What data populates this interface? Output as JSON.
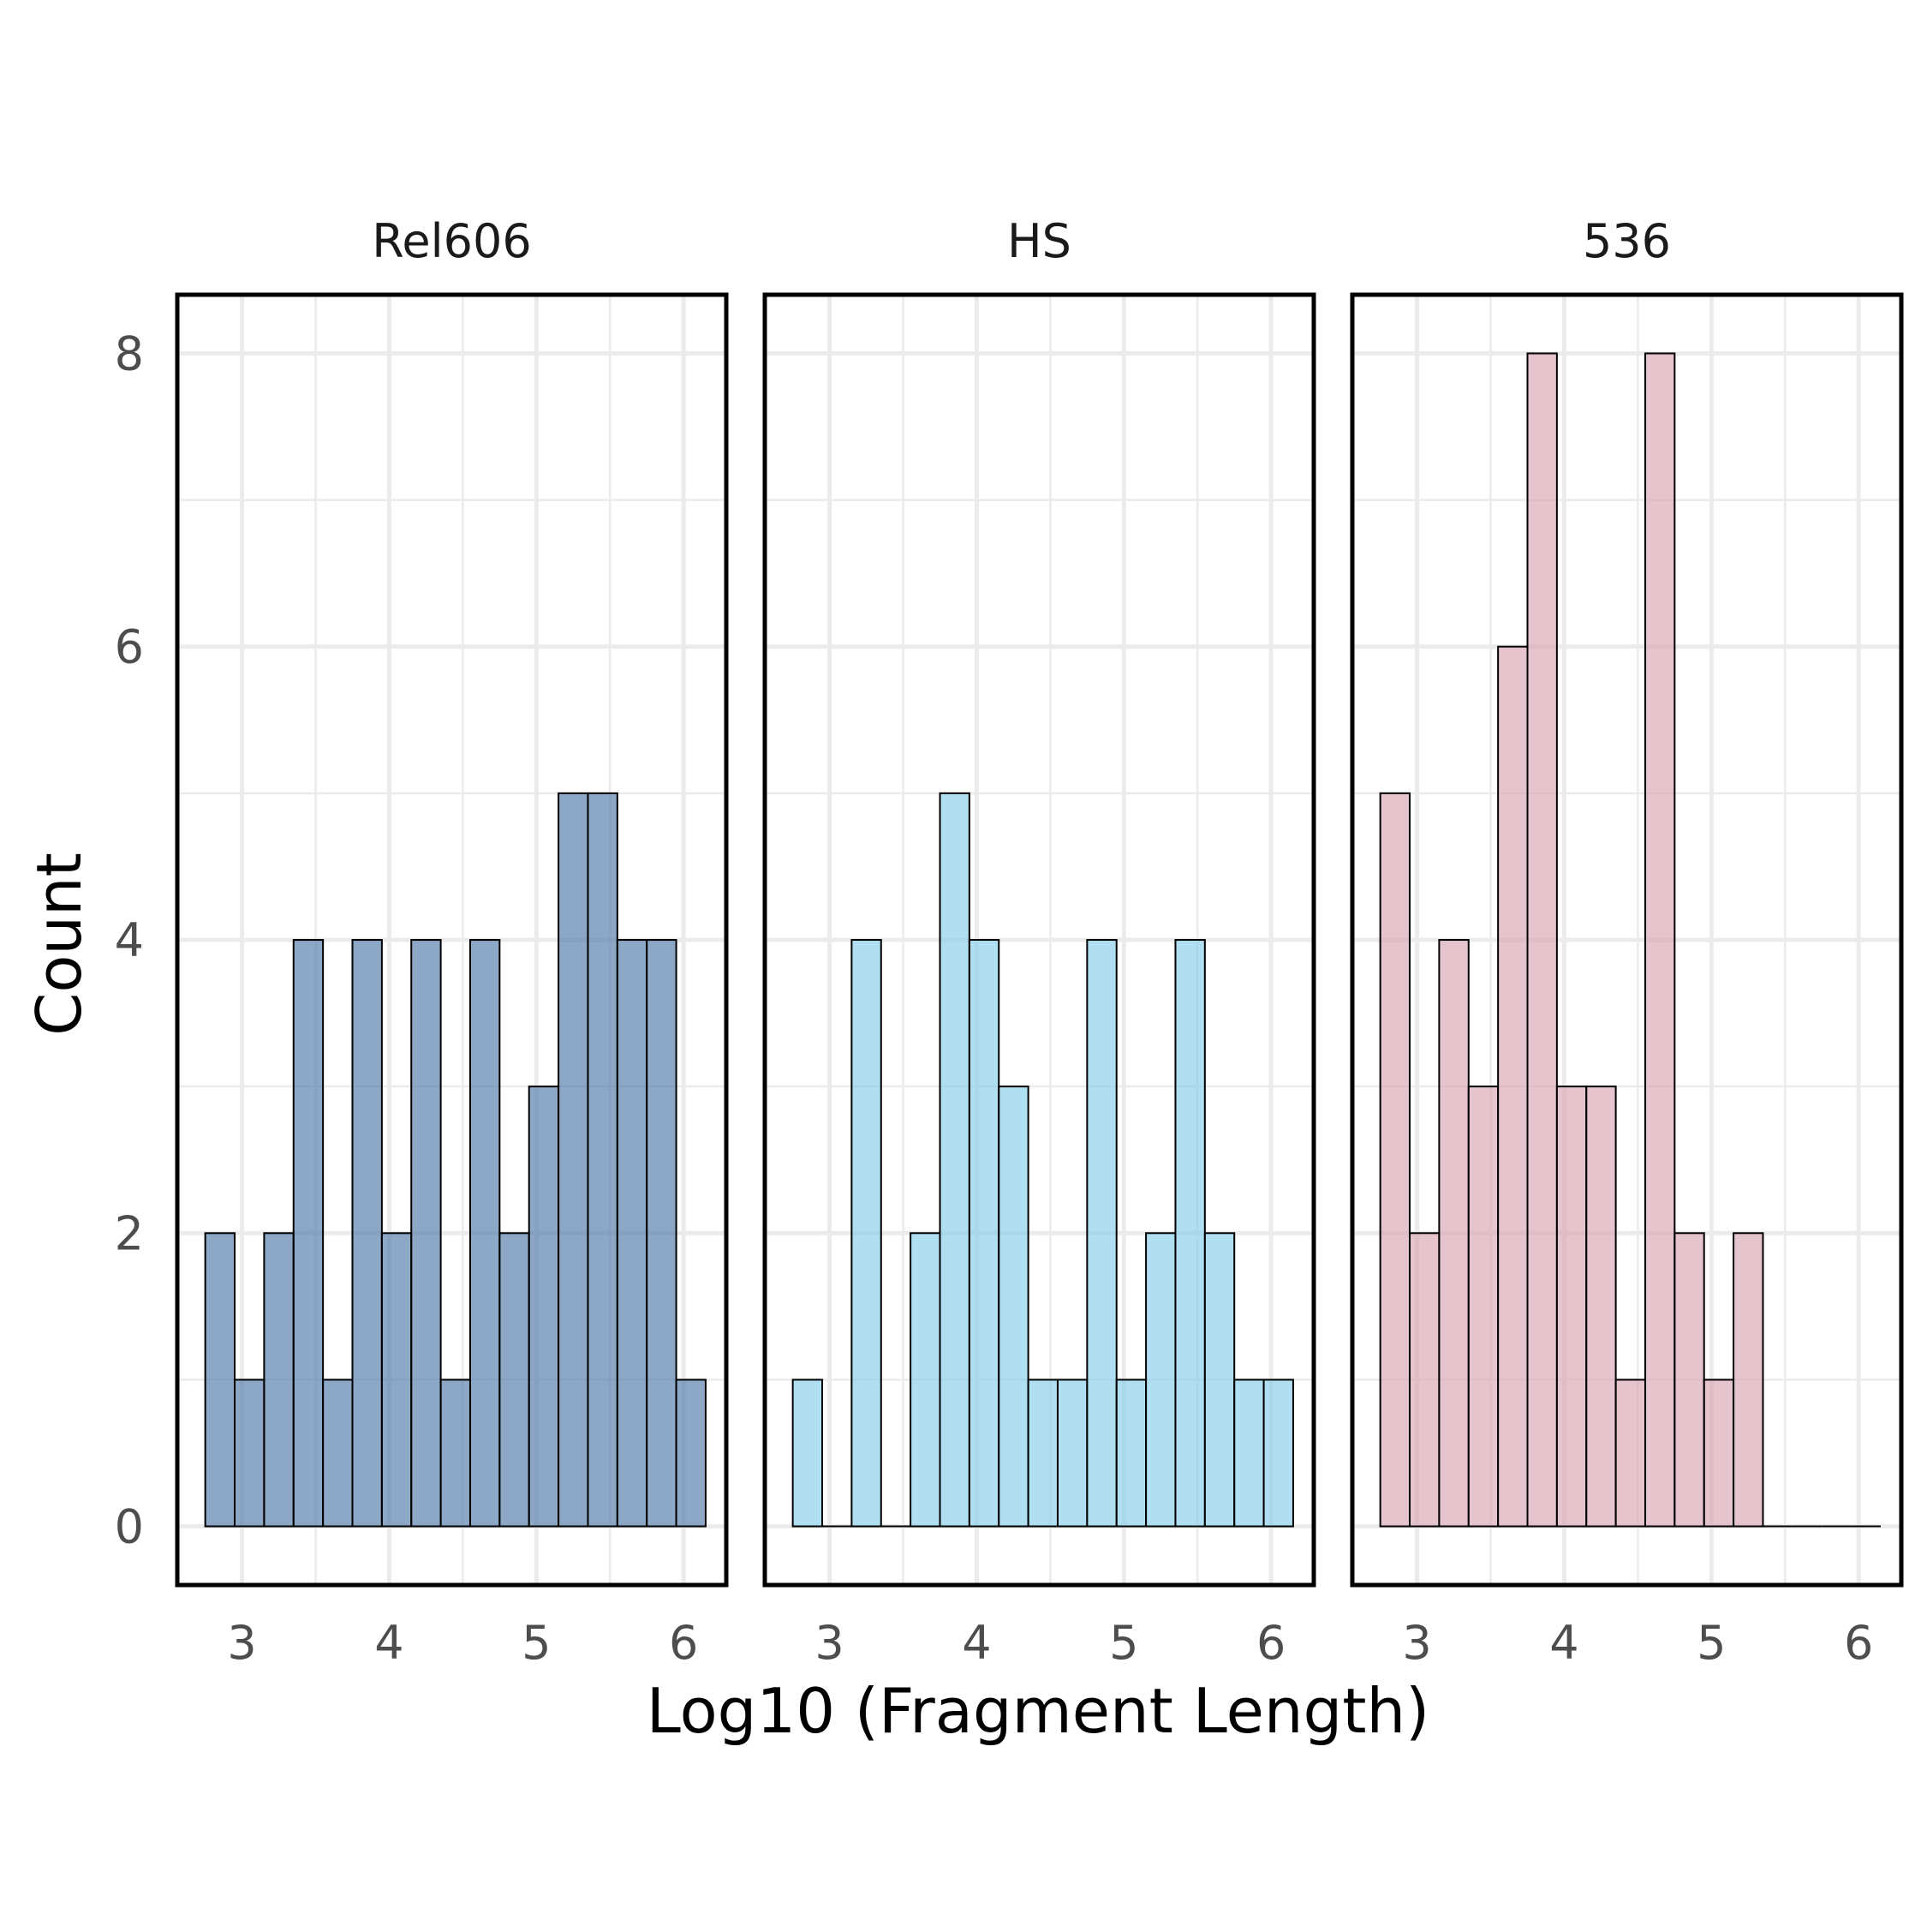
{
  "chart_data": {
    "type": "histogram",
    "xlabel": "Log10 (Fragment Length)",
    "ylabel": "Count",
    "xlim": [
      2.56,
      6.29
    ],
    "ylim": [
      -0.4,
      8.4
    ],
    "x_ticks": [
      3,
      4,
      5,
      6
    ],
    "y_ticks": [
      0,
      2,
      4,
      6,
      8
    ],
    "grid": true,
    "bins": {
      "start": 2.75,
      "width": 0.2,
      "count": 17
    },
    "panels": [
      {
        "title": "Rel606",
        "fill": "#4e79a7",
        "values": [
          2,
          1,
          2,
          4,
          1,
          4,
          2,
          4,
          1,
          4,
          2,
          3,
          5,
          5,
          4,
          4,
          1
        ]
      },
      {
        "title": "HS",
        "fill": "#87ceeb",
        "values": [
          1,
          0,
          4,
          0,
          2,
          5,
          4,
          3,
          1,
          1,
          4,
          1,
          2,
          4,
          2,
          1,
          1
        ]
      },
      {
        "title": "536",
        "fill": "#d9a5b3",
        "values": [
          5,
          2,
          4,
          3,
          6,
          8,
          3,
          3,
          1,
          8,
          2,
          1,
          2,
          0,
          0,
          0,
          0
        ]
      }
    ]
  }
}
